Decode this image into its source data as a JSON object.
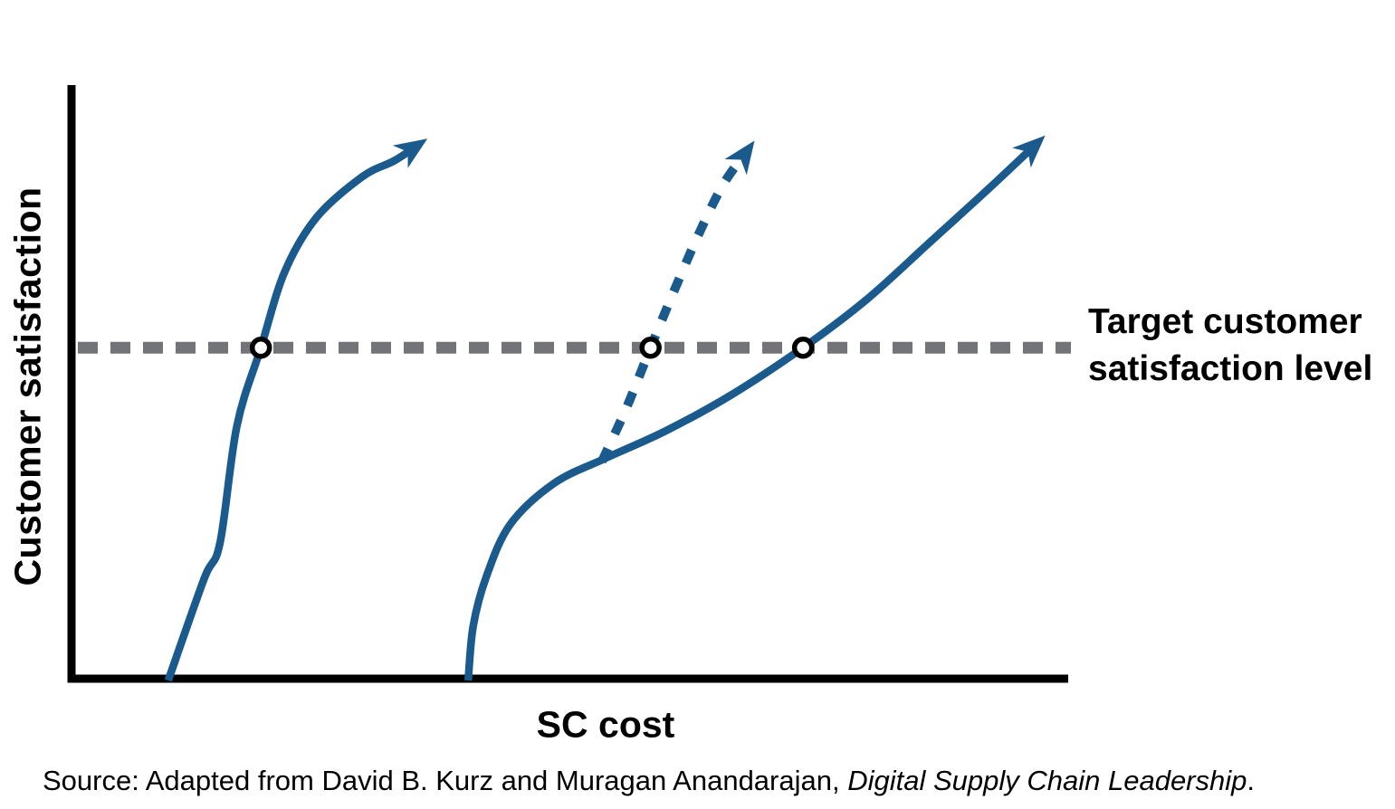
{
  "chart_data": {
    "type": "line",
    "title": "",
    "xlabel": "SC cost",
    "ylabel": "Customer satisfaction",
    "x_axis_ticks": [],
    "y_axis_ticks": [],
    "grid": false,
    "legend": "none",
    "x_range_norm": [
      0,
      1
    ],
    "y_range_norm": [
      0,
      1
    ],
    "curve_color": "#1a5a8c",
    "axis_color": "#000000",
    "marker": {
      "fill": "#ffffff",
      "stroke": "#000000"
    },
    "target": {
      "level_norm": 0.561,
      "style": "dashed",
      "color": "#727477",
      "label_lines": [
        "Target customer",
        "satisfaction level"
      ]
    },
    "series": [
      {
        "name": "left-cost-satisfaction-curve",
        "style": "solid",
        "arrow": true,
        "marker_norm": [
          0.19,
          0.561
        ],
        "points_norm": [
          [
            0.097,
            -0.003
          ],
          [
            0.133,
            0.169
          ],
          [
            0.149,
            0.23
          ],
          [
            0.166,
            0.429
          ],
          [
            0.19,
            0.561
          ],
          [
            0.214,
            0.69
          ],
          [
            0.246,
            0.782
          ],
          [
            0.292,
            0.851
          ],
          [
            0.324,
            0.878
          ],
          [
            0.348,
            0.905
          ]
        ]
      },
      {
        "name": "middle-cost-satisfaction-curve",
        "style": "dashed",
        "arrow": true,
        "marker_norm": [
          0.581,
          0.561
        ],
        "points_norm": [
          [
            0.532,
            0.368
          ],
          [
            0.557,
            0.46
          ],
          [
            0.581,
            0.561
          ],
          [
            0.606,
            0.663
          ],
          [
            0.63,
            0.756
          ],
          [
            0.654,
            0.838
          ],
          [
            0.679,
            0.897
          ]
        ]
      },
      {
        "name": "right-cost-satisfaction-curve",
        "style": "solid",
        "arrow": true,
        "marker_norm": [
          0.734,
          0.561
        ],
        "points_norm": [
          [
            0.398,
            -0.003
          ],
          [
            0.403,
            0.089
          ],
          [
            0.416,
            0.172
          ],
          [
            0.44,
            0.261
          ],
          [
            0.484,
            0.331
          ],
          [
            0.535,
            0.373
          ],
          [
            0.595,
            0.419
          ],
          [
            0.66,
            0.479
          ],
          [
            0.734,
            0.561
          ],
          [
            0.798,
            0.643
          ],
          [
            0.862,
            0.741
          ],
          [
            0.92,
            0.83
          ],
          [
            0.969,
            0.908
          ]
        ]
      }
    ]
  },
  "source": {
    "prefix": "Source: Adapted from David B. Kurz and Muragan Anandarajan, ",
    "italic": "Digital Supply Chain Leadership",
    "suffix": "."
  }
}
